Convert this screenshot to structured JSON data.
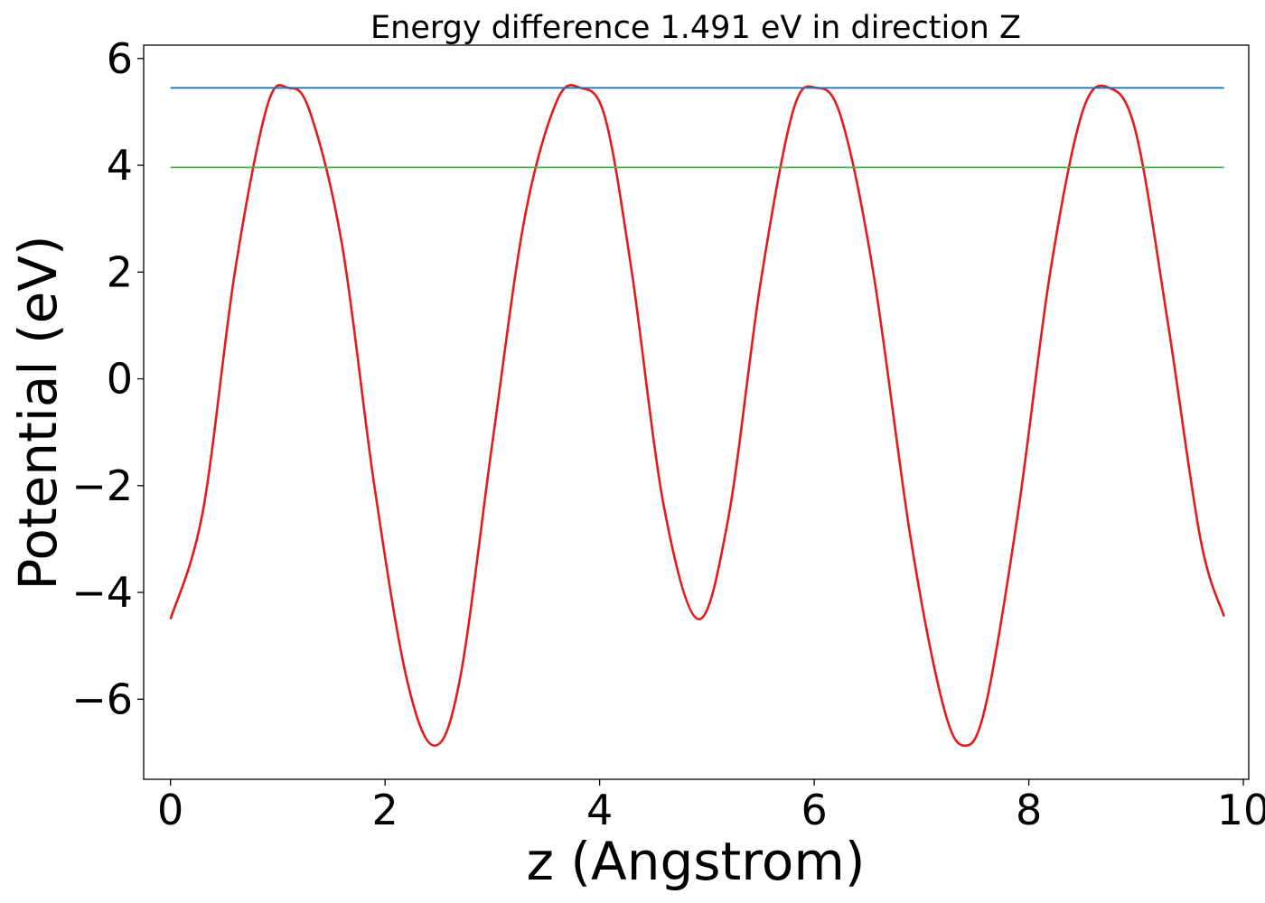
{
  "chart_data": {
    "type": "line",
    "title": "Energy difference 1.491 eV in direction Z",
    "xlabel": "z (Angstrom)",
    "ylabel": "Potential (eV)",
    "xlim": [
      -0.25,
      10.05
    ],
    "ylim": [
      -7.5,
      6.25
    ],
    "xticks": [
      0,
      2,
      4,
      6,
      8,
      10
    ],
    "yticks": [
      -6,
      -4,
      -2,
      0,
      2,
      4,
      6
    ],
    "xtick_labels": [
      "0",
      "2",
      "4",
      "6",
      "8",
      "10"
    ],
    "ytick_labels": [
      "−6",
      "−4",
      "−2",
      "0",
      "2",
      "4",
      "6"
    ],
    "grid": false,
    "legend": "none",
    "series": [
      {
        "color": "#e41a1c",
        "x": [
          0.0,
          0.3,
          0.6,
          0.9,
          1.1,
          1.3,
          1.6,
          1.9,
          2.2,
          2.46,
          2.7,
          3.0,
          3.3,
          3.6,
          3.82,
          4.05,
          4.3,
          4.6,
          4.92,
          5.2,
          5.5,
          5.8,
          6.02,
          6.25,
          6.55,
          6.9,
          7.2,
          7.4,
          7.6,
          7.9,
          8.2,
          8.5,
          8.75,
          9.0,
          9.3,
          9.6,
          9.82
        ],
        "values": [
          -4.5,
          -2.5,
          2.0,
          5.1,
          5.45,
          5.0,
          2.5,
          -2.0,
          -5.6,
          -6.87,
          -5.6,
          -1.2,
          3.0,
          5.2,
          5.45,
          4.9,
          2.0,
          -2.4,
          -4.5,
          -2.6,
          1.8,
          5.0,
          5.45,
          4.9,
          2.0,
          -3.0,
          -6.1,
          -6.87,
          -6.1,
          -2.5,
          2.0,
          5.0,
          5.45,
          4.6,
          1.0,
          -3.0,
          -4.45
        ]
      },
      {
        "color": "#1f77b4",
        "x": [
          0.0,
          9.82
        ],
        "values": [
          5.45,
          5.45
        ]
      },
      {
        "color": "#4daf4a",
        "x": [
          0.0,
          9.82
        ],
        "values": [
          3.96,
          3.96
        ]
      }
    ]
  }
}
